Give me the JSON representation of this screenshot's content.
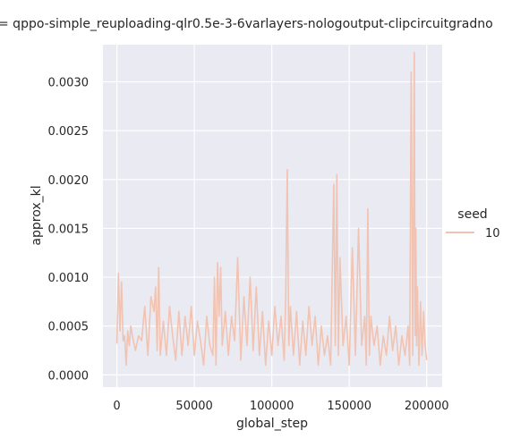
{
  "chart_data": {
    "type": "line",
    "title": "= qppo-simple_reuploading-qlr0.5e-3-6varlayers-nologoutput-clipcircuitgradno",
    "xlabel": "global_step",
    "ylabel": "approx_kl",
    "xlim": [
      -9000,
      210000
    ],
    "ylim": [
      -0.000125,
      0.00338
    ],
    "x_ticks": [
      0,
      50000,
      100000,
      150000,
      200000
    ],
    "x_tick_labels": [
      "0",
      "50000",
      "100000",
      "150000",
      "200000"
    ],
    "y_ticks": [
      0,
      0.0005,
      0.001,
      0.0015,
      0.002,
      0.0025,
      0.003
    ],
    "y_tick_labels": [
      "0.0000",
      "0.0005",
      "0.0010",
      "0.0015",
      "0.0020",
      "0.0025",
      "0.0030"
    ],
    "grid": true,
    "legend": {
      "title": "seed",
      "placement": "right",
      "entries": [
        "10"
      ]
    },
    "colors": {
      "background": "#eaeaf2",
      "grid": "#ffffff",
      "line": "#f1c3b2"
    },
    "series": [
      {
        "name": "10",
        "x": [
          0,
          1000,
          2000,
          3000,
          4000,
          5000,
          6000,
          7000,
          8000,
          9000,
          10000,
          12000,
          14000,
          16000,
          18000,
          20000,
          22000,
          24000,
          25000,
          26000,
          27000,
          28000,
          30000,
          32000,
          34000,
          36000,
          38000,
          40000,
          42000,
          44000,
          46000,
          48000,
          50000,
          52000,
          54000,
          56000,
          58000,
          60000,
          62000,
          63000,
          64000,
          65000,
          66000,
          67000,
          68000,
          70000,
          72000,
          74000,
          76000,
          78000,
          80000,
          82000,
          84000,
          86000,
          88000,
          90000,
          92000,
          94000,
          96000,
          98000,
          100000,
          102000,
          104000,
          106000,
          108000,
          109000,
          110000,
          111000,
          112000,
          114000,
          116000,
          118000,
          120000,
          122000,
          124000,
          126000,
          128000,
          130000,
          132000,
          134000,
          136000,
          138000,
          140000,
          141000,
          142000,
          143000,
          144000,
          146000,
          148000,
          150000,
          152000,
          154000,
          156000,
          158000,
          160000,
          161000,
          162000,
          163000,
          164000,
          166000,
          168000,
          170000,
          172000,
          174000,
          176000,
          178000,
          180000,
          182000,
          184000,
          186000,
          188000,
          189000,
          190000,
          191000,
          192000,
          192500,
          193000,
          193500,
          194000,
          195000,
          196000,
          197000,
          198000,
          199000,
          200000
        ],
        "values": [
          0.00032,
          0.00104,
          0.00045,
          0.00095,
          0.00035,
          0.0004,
          0.0001,
          0.00045,
          0.0003,
          0.0005,
          0.0004,
          0.00025,
          0.0004,
          0.00035,
          0.0007,
          0.0002,
          0.0008,
          0.00065,
          0.0009,
          0.00025,
          0.0011,
          0.0002,
          0.00055,
          0.0002,
          0.0007,
          0.0004,
          0.00015,
          0.00065,
          0.0002,
          0.0006,
          0.0003,
          0.0007,
          0.0002,
          0.00055,
          0.00035,
          0.0001,
          0.0006,
          0.0003,
          0.0002,
          0.001,
          0.0001,
          0.00115,
          0.0006,
          0.0011,
          0.0003,
          0.00065,
          0.0002,
          0.0006,
          0.00035,
          0.0012,
          0.00015,
          0.0008,
          0.0003,
          0.001,
          0.00025,
          0.0009,
          0.0002,
          0.00065,
          0.0001,
          0.00055,
          0.0002,
          0.0007,
          0.0003,
          0.0006,
          0.00015,
          0.0008,
          0.0021,
          0.0003,
          0.0007,
          0.0002,
          0.00065,
          0.0001,
          0.00055,
          0.0002,
          0.0007,
          0.0003,
          0.0006,
          0.0001,
          0.0005,
          0.0002,
          0.0004,
          0.0001,
          0.00195,
          0.0003,
          0.00205,
          0.0002,
          0.0012,
          0.0003,
          0.0006,
          0.0001,
          0.0013,
          0.0002,
          0.0015,
          0.0003,
          0.0006,
          0.0001,
          0.0017,
          0.0002,
          0.0006,
          0.0003,
          0.0005,
          0.0001,
          0.0004,
          0.0002,
          0.0006,
          0.00025,
          0.0005,
          0.0001,
          0.0004,
          0.0002,
          0.0005,
          0.0001,
          0.0031,
          0.0002,
          0.0033,
          0.0004,
          0.0015,
          0.0003,
          0.0009,
          0.0001,
          0.00075,
          0.0002,
          0.00065,
          0.0003,
          0.00015
        ]
      }
    ]
  }
}
